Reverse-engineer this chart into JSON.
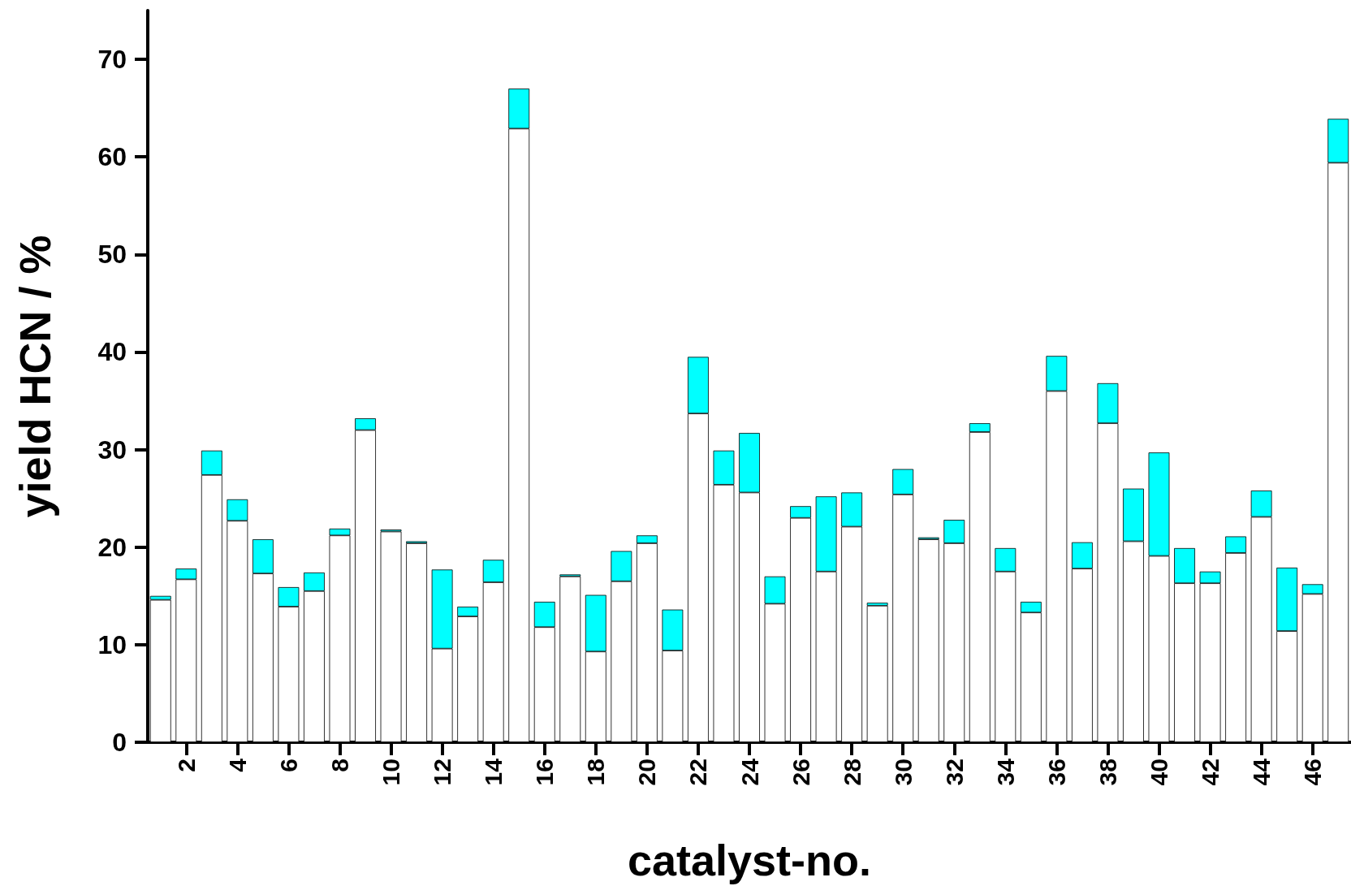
{
  "chart_data": {
    "type": "bar",
    "xlabel": "catalyst-no.",
    "ylabel": "yield HCN / %",
    "categories": [
      null,
      "2",
      null,
      "4",
      null,
      "6",
      null,
      "8",
      null,
      "10",
      null,
      "12",
      null,
      "14",
      null,
      "16",
      null,
      "18",
      null,
      "20",
      null,
      "22",
      null,
      "24",
      null,
      "26",
      null,
      "28",
      null,
      "30",
      null,
      "32",
      null,
      "34",
      null,
      "36",
      null,
      "38",
      null,
      "40",
      null,
      "42",
      null,
      "44",
      null,
      "46",
      null
    ],
    "stacked": true,
    "series": [
      {
        "color": "#ffffff",
        "values": [
          14.6,
          16.7,
          27.4,
          22.7,
          17.3,
          13.9,
          15.5,
          21.2,
          32.0,
          21.6,
          20.4,
          9.6,
          12.9,
          16.4,
          62.9,
          11.8,
          17.0,
          9.3,
          16.5,
          20.4,
          9.4,
          33.7,
          26.4,
          25.6,
          14.2,
          23.0,
          17.5,
          22.1,
          14.0,
          25.4,
          20.8,
          20.4,
          31.8,
          17.5,
          13.3,
          36.0,
          17.8,
          32.7,
          20.6,
          19.1,
          16.3,
          16.3,
          19.4,
          23.1,
          11.4,
          15.2,
          59.4
        ]
      },
      {
        "color": "#00ffff",
        "values": [
          0.4,
          1.1,
          2.5,
          2.2,
          3.5,
          2.0,
          1.9,
          0.7,
          1.2,
          0.2,
          0.2,
          8.1,
          1.0,
          2.3,
          4.1,
          2.6,
          0.2,
          5.8,
          3.1,
          0.8,
          4.2,
          5.8,
          3.5,
          6.1,
          2.8,
          1.2,
          7.7,
          3.5,
          0.3,
          2.6,
          0.2,
          2.4,
          0.9,
          2.4,
          1.1,
          3.6,
          2.7,
          4.1,
          5.4,
          10.6,
          3.6,
          1.2,
          1.7,
          2.7,
          6.5,
          1.0,
          4.5
        ]
      }
    ],
    "ylim": [
      0,
      75
    ],
    "yticks": [
      0,
      10,
      20,
      30,
      40,
      50,
      60,
      70
    ]
  }
}
